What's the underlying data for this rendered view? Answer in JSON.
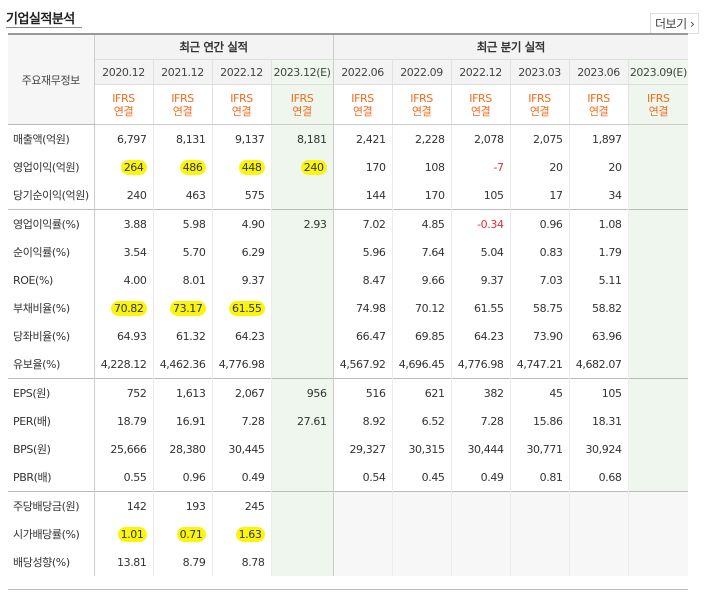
{
  "section_title": "기업실적분석",
  "more_label": "더보기",
  "more_icon": "chevron-right-icon",
  "header": {
    "row_label": "주요재무정보",
    "annual_group": "최근 연간 실적",
    "quarter_group": "최근 분기 실적",
    "annual_periods": [
      "2020.12",
      "2021.12",
      "2022.12",
      "2023.12(E)"
    ],
    "quarter_periods": [
      "2022.06",
      "2022.09",
      "2022.12",
      "2023.03",
      "2023.06",
      "2023.09(E)"
    ],
    "ifrs_line1": "IFRS",
    "ifrs_line2": "연결"
  },
  "rows": [
    {
      "label": "매출액(억원)",
      "annual": [
        "6,797",
        "8,131",
        "9,137",
        "8,181"
      ],
      "quarter": [
        "2,421",
        "2,228",
        "2,078",
        "2,075",
        "1,897",
        ""
      ],
      "highlight": false
    },
    {
      "label": "영업이익(억원)",
      "annual": [
        "264",
        "486",
        "448",
        "240"
      ],
      "quarter": [
        "170",
        "108",
        "-7",
        "20",
        "20",
        ""
      ],
      "highlight": true
    },
    {
      "label": "당기순이익(억원)",
      "annual": [
        "240",
        "463",
        "575",
        ""
      ],
      "quarter": [
        "144",
        "170",
        "105",
        "17",
        "34",
        ""
      ],
      "highlight": false
    },
    {
      "label": "영업이익률(%)",
      "annual": [
        "3.88",
        "5.98",
        "4.90",
        "2.93"
      ],
      "quarter": [
        "7.02",
        "4.85",
        "-0.34",
        "0.96",
        "1.08",
        ""
      ],
      "highlight": false
    },
    {
      "label": "순이익률(%)",
      "annual": [
        "3.54",
        "5.70",
        "6.29",
        ""
      ],
      "quarter": [
        "5.96",
        "7.64",
        "5.04",
        "0.83",
        "1.79",
        ""
      ],
      "highlight": false
    },
    {
      "label": "ROE(%)",
      "annual": [
        "4.00",
        "8.01",
        "9.37",
        ""
      ],
      "quarter": [
        "8.47",
        "9.66",
        "9.37",
        "7.03",
        "5.11",
        ""
      ],
      "highlight": false
    },
    {
      "label": "부채비율(%)",
      "annual": [
        "70.82",
        "73.17",
        "61.55",
        ""
      ],
      "quarter": [
        "74.98",
        "70.12",
        "61.55",
        "58.75",
        "58.82",
        ""
      ],
      "highlight": true
    },
    {
      "label": "당좌비율(%)",
      "annual": [
        "64.93",
        "61.32",
        "64.23",
        ""
      ],
      "quarter": [
        "66.47",
        "69.85",
        "64.23",
        "73.90",
        "63.96",
        ""
      ],
      "highlight": false
    },
    {
      "label": "유보율(%)",
      "annual": [
        "4,228.12",
        "4,462.36",
        "4,776.98",
        ""
      ],
      "quarter": [
        "4,567.92",
        "4,696.45",
        "4,776.98",
        "4,747.21",
        "4,682.07",
        ""
      ],
      "highlight": false
    },
    {
      "label": "EPS(원)",
      "annual": [
        "752",
        "1,613",
        "2,067",
        "956"
      ],
      "quarter": [
        "516",
        "621",
        "382",
        "45",
        "105",
        ""
      ],
      "highlight": false
    },
    {
      "label": "PER(배)",
      "annual": [
        "18.79",
        "16.91",
        "7.28",
        "27.61"
      ],
      "quarter": [
        "8.92",
        "6.52",
        "7.28",
        "15.86",
        "18.31",
        ""
      ],
      "highlight": false
    },
    {
      "label": "BPS(원)",
      "annual": [
        "25,666",
        "28,380",
        "30,445",
        ""
      ],
      "quarter": [
        "29,327",
        "30,315",
        "30,444",
        "30,771",
        "30,924",
        ""
      ],
      "highlight": false
    },
    {
      "label": "PBR(배)",
      "annual": [
        "0.55",
        "0.96",
        "0.49",
        ""
      ],
      "quarter": [
        "0.54",
        "0.45",
        "0.49",
        "0.81",
        "0.68",
        ""
      ],
      "highlight": false
    },
    {
      "label": "주당배당금(원)",
      "annual": [
        "142",
        "193",
        "245",
        ""
      ],
      "quarter": [
        "",
        "",
        "",
        "",
        "",
        ""
      ],
      "highlight": false
    },
    {
      "label": "시가배당률(%)",
      "annual": [
        "1.01",
        "0.71",
        "1.63",
        ""
      ],
      "quarter": [
        "",
        "",
        "",
        "",
        "",
        ""
      ],
      "highlight": true
    },
    {
      "label": "배당성향(%)",
      "annual": [
        "13.81",
        "8.79",
        "8.78",
        ""
      ],
      "quarter": [
        "",
        "",
        "",
        "",
        "",
        ""
      ],
      "highlight": false
    }
  ],
  "colors": {
    "ifrs": "#f26b1d",
    "negative": "#e03030",
    "estimate_bg": "#eef6ee",
    "highlight": "#fbf50d"
  }
}
